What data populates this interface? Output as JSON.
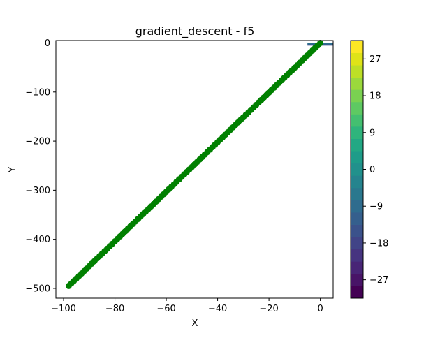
{
  "chart_data": {
    "type": "scatter",
    "title": "gradient_descent - f5",
    "xlabel": "X",
    "ylabel": "Y",
    "xlim": [
      -103,
      5
    ],
    "ylim": [
      -520,
      5
    ],
    "xticks": [
      -100,
      -80,
      -60,
      -40,
      -20,
      0
    ],
    "yticks": [
      0,
      -100,
      -200,
      -300,
      -400,
      -500
    ],
    "point_color": "#008000",
    "path": {
      "start": [
        -98,
        -495
      ],
      "end": [
        0,
        0
      ],
      "count": 99
    },
    "contour": {
      "xrange": [
        -5,
        5
      ],
      "yrange": [
        -5,
        0
      ]
    },
    "colorbar": {
      "min": -31.5,
      "max": 31.5,
      "levels": 21,
      "ticks": [
        -27,
        -18,
        -9,
        0,
        9,
        18,
        27
      ],
      "tick_labels": [
        "−27",
        "−18",
        "−9",
        "0",
        "9",
        "18",
        "27"
      ],
      "colors": [
        "#440154",
        "#481467",
        "#482576",
        "#463480",
        "#414487",
        "#3b528b",
        "#355f8d",
        "#2f6c8e",
        "#2a788e",
        "#25848e",
        "#21918c",
        "#1e9c89",
        "#22a884",
        "#2fb47c",
        "#44bf70",
        "#5ec962",
        "#7ad151",
        "#9bd93c",
        "#bddf26",
        "#dfe318",
        "#fde725"
      ]
    }
  }
}
